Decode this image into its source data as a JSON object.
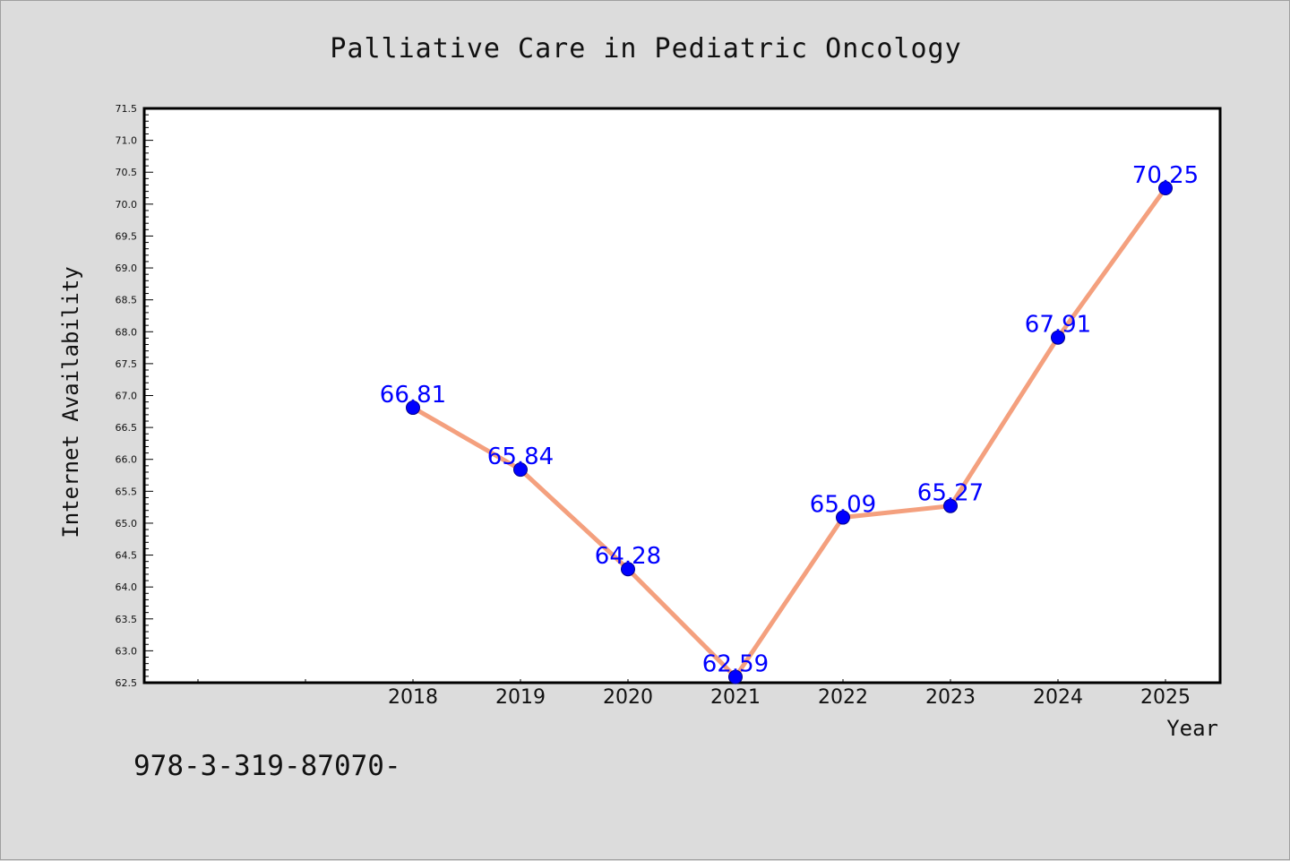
{
  "chart_data": {
    "type": "line",
    "title": "Palliative Care in Pediatric Oncology",
    "xlabel": "Year",
    "ylabel": "Internet Availability",
    "categories": [
      "2018",
      "2019",
      "2020",
      "2021",
      "2022",
      "2023",
      "2024",
      "2025"
    ],
    "series": [
      {
        "values": [
          66.81,
          65.84,
          64.28,
          62.59,
          65.09,
          65.27,
          67.91,
          70.25
        ],
        "labels": [
          "66.81",
          "65.84",
          "64.28",
          "62.59",
          "65.09",
          "65.27",
          "67.91",
          "70.25"
        ]
      }
    ],
    "ylim": [
      62.5,
      71.5
    ],
    "yticks": [
      "62.5",
      "63.0",
      "63.5",
      "64.0",
      "64.5",
      "65.0",
      "65.5",
      "66.0",
      "66.5",
      "67.0",
      "67.5",
      "68.0",
      "68.5",
      "69.0",
      "69.5",
      "70.0",
      "70.5",
      "71.0",
      "71.5"
    ],
    "grid": false,
    "legend": "none",
    "colors": {
      "line": "#f4a07e",
      "marker": "#0000ff",
      "data_label": "#0000ff",
      "background": "#dcdcdc",
      "plot_area": "#ffffff"
    }
  },
  "footnote": "978-3-319-87070-"
}
